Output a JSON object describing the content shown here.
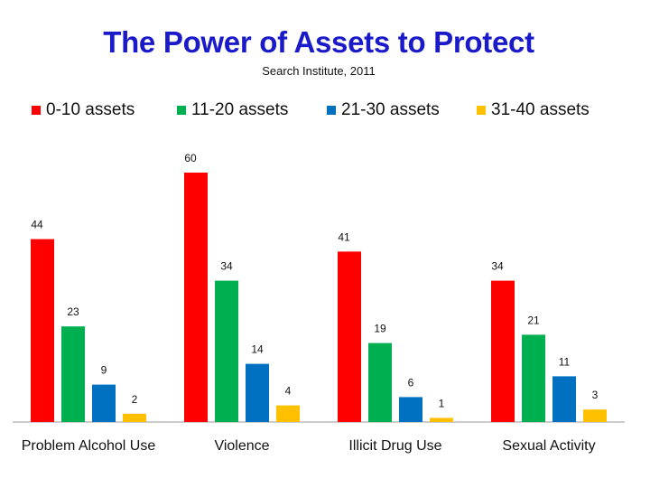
{
  "chart_data": {
    "type": "bar",
    "title": "The Power of Assets to Protect",
    "subtitle": "Search Institute, 2011",
    "categories": [
      "Problem Alcohol Use",
      "Violence",
      "Illicit Drug Use",
      "Sexual Activity"
    ],
    "series": [
      {
        "name": "0-10 assets",
        "color": "#ff0000",
        "values": [
          44,
          60,
          41,
          34
        ]
      },
      {
        "name": "11-20 assets",
        "color": "#00b050",
        "values": [
          23,
          34,
          19,
          21
        ]
      },
      {
        "name": "21-30 assets",
        "color": "#0070c0",
        "values": [
          9,
          14,
          6,
          11
        ]
      },
      {
        "name": "31-40 assets",
        "color": "#ffc000",
        "values": [
          2,
          4,
          1,
          3
        ]
      }
    ],
    "ylim": [
      0,
      70
    ],
    "grid": false,
    "legend_position": "top"
  }
}
